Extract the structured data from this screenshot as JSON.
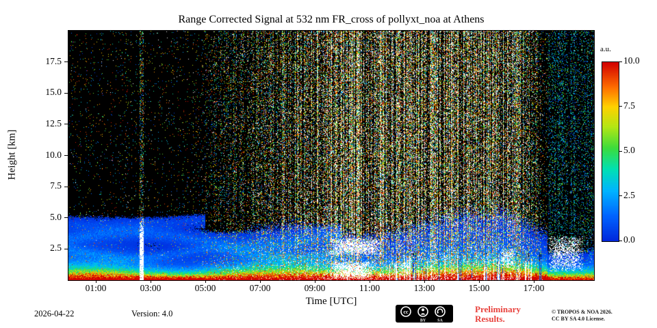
{
  "chart_data": {
    "type": "heatmap",
    "title": "Range Corrected Signal at 532 nm FR_cross of pollyxt_noa at Athens",
    "xlabel": "Time [UTC]",
    "ylabel": "Height [km]",
    "x_ticks": [
      "01:00",
      "03:00",
      "05:00",
      "07:00",
      "09:00",
      "11:00",
      "13:00",
      "15:00",
      "17:00"
    ],
    "x_tick_hours": [
      1,
      3,
      5,
      7,
      9,
      11,
      13,
      15,
      17
    ],
    "x_range_hours": [
      0,
      19.2
    ],
    "y_tick_labels": [
      "2.5",
      "5.0",
      "7.5",
      "10.0",
      "12.5",
      "15.0",
      "17.5"
    ],
    "y_tick_values": [
      2.5,
      5.0,
      7.5,
      10.0,
      12.5,
      15.0,
      17.5
    ],
    "y_range_km": [
      0,
      20
    ],
    "colorbar": {
      "label": "a.u.",
      "tick_labels": [
        "0.0",
        "2.5",
        "5.0",
        "7.5",
        "10.0"
      ],
      "tick_values": [
        0,
        2.5,
        5,
        7.5,
        10
      ],
      "range": [
        0,
        10
      ],
      "colormap_stops": [
        [
          0.0,
          "#0028dc"
        ],
        [
          0.14,
          "#0064ff"
        ],
        [
          0.28,
          "#00b4ff"
        ],
        [
          0.4,
          "#00e0b4"
        ],
        [
          0.52,
          "#3cdc3c"
        ],
        [
          0.64,
          "#b4e614"
        ],
        [
          0.75,
          "#ffd200"
        ],
        [
          0.86,
          "#ff6e00"
        ],
        [
          1.0,
          "#d20000"
        ]
      ]
    },
    "scene": {
      "seed": 1337,
      "time_range_hours": [
        0,
        19.2
      ],
      "height_range_km": [
        0,
        20
      ],
      "surface_layer": {
        "scale_km": 0.5,
        "peak": 13
      },
      "boundary_layer": {
        "scale_km": 1.25,
        "peak": 2.4
      },
      "elevated_layers": [
        {
          "center_km": 3.3,
          "wave_amp_km": 0.5,
          "wave_freq": 0.7,
          "sigma_km": 0.4,
          "peak": 1.1,
          "t_end": 10
        },
        {
          "center_km": 2.1,
          "wave_amp_km": 0.35,
          "wave_freq": 1.1,
          "sigma_km": 0.3,
          "peak": 0.9,
          "t_end": 10.5
        },
        {
          "center_km": 4.7,
          "wave_amp_km": 0.3,
          "wave_freq": 0.5,
          "sigma_km": 0.35,
          "peak": 0.55,
          "t_end": 5
        }
      ],
      "noise": {
        "night_density": 0.035,
        "day_density": 0.5,
        "ramp_up": [
          4.5,
          9.5
        ],
        "ramp_down": [
          16.3,
          17.5
        ],
        "late_density": 0.18
      },
      "clouds": [
        {
          "t": [
            9.55,
            11.45
          ],
          "h": [
            2.0,
            3.35
          ],
          "prob": 0.7
        },
        {
          "t": [
            9.6,
            11.15
          ],
          "h": [
            0.12,
            1.5
          ],
          "prob": 0.8
        },
        {
          "t": [
            12.1,
            12.5
          ],
          "h": [
            0.3,
            1.6
          ],
          "prob": 0.45
        },
        {
          "t": [
            15.75,
            16.3
          ],
          "h": [
            1.0,
            2.5
          ],
          "prob": 0.5
        },
        {
          "t": [
            17.55,
            18.8
          ],
          "h": [
            0.7,
            3.5
          ],
          "prob": 0.55
        }
      ],
      "white_column": {
        "t": [
          2.6,
          2.74
        ],
        "h_top_km": 4.3
      },
      "surface_spikes": {
        "t": [
          11.7,
          17.3
        ],
        "col_prob": 0.16,
        "max_h_km": 2.0
      },
      "dark_columns": {
        "t": [
          12.0,
          17.45
        ],
        "col_prob": 0.1
      },
      "dark_after_hour": 17.5
    }
  },
  "footer": {
    "date": "2026-04-22",
    "version": "Version: 4.0",
    "license_badge": {
      "cc": "cc",
      "by": "BY",
      "sa": "SA"
    },
    "preliminary_line1": "Preliminary",
    "preliminary_line2": "Results.",
    "copyright_line1": "© TROPOS & NOA 2026.",
    "copyright_line2": "CC BY SA 4.0 License."
  }
}
